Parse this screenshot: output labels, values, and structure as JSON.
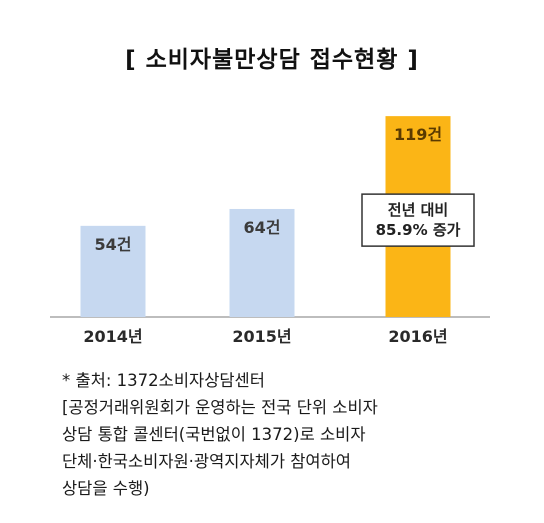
{
  "title": "[ 소비자불만상담 접수현황 ]",
  "chart_data": {
    "type": "bar",
    "title": "[ 소비자불만상담 접수현황 ]",
    "categories": [
      "2014년",
      "2015년",
      "2016년"
    ],
    "values": [
      54,
      64,
      119
    ],
    "value_labels": [
      "54건",
      "64건",
      "119건"
    ],
    "unit": "건",
    "colors": [
      "#c6d8f0",
      "#c6d8f0",
      "#fbb516"
    ],
    "ylim": [
      0,
      125
    ],
    "grid": false,
    "legend": "none",
    "annotation": {
      "target_category": "2016년",
      "lines": [
        "전년 대비",
        "85.9% 증가"
      ]
    }
  },
  "source": {
    "lines": [
      "* 출처: 1372소비자상담센터",
      "[공정거래위원회가 운영하는 전국 단위 소비자",
      "상담 통합 콜센터(국번없이 1372)로 소비자",
      "단체·한국소비자원·광역지자체가 참여하여",
      "상담을 수행)"
    ]
  }
}
